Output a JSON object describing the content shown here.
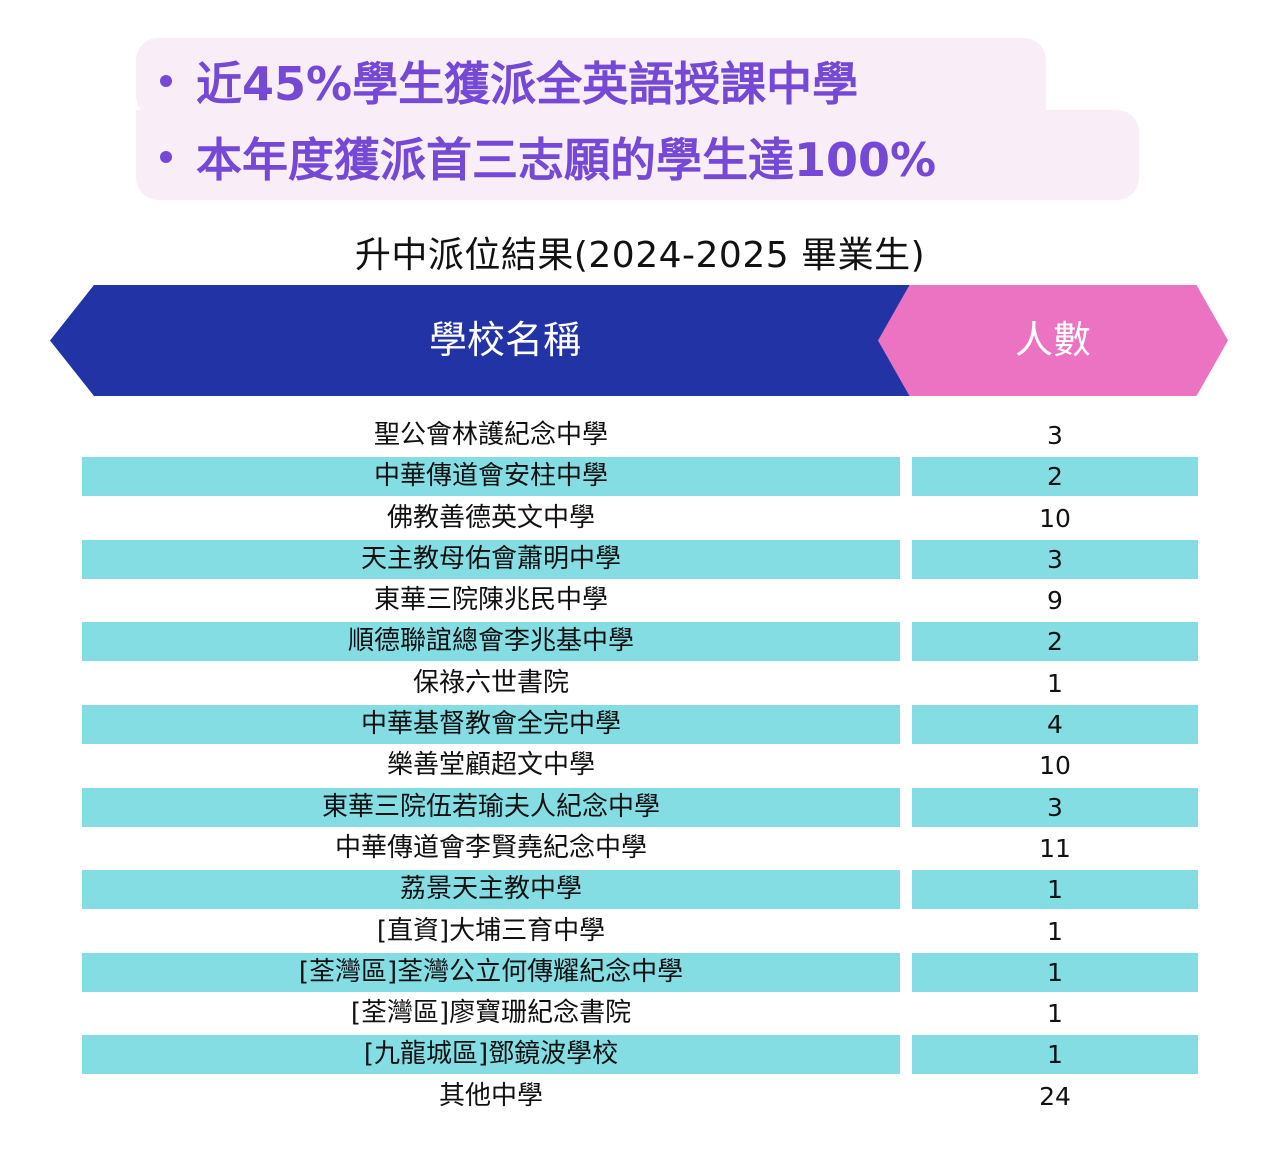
{
  "highlights": [
    "近45%學生獲派全英語授課中學",
    "本年度獲派首三志願的學生達100%"
  ],
  "title": "升中派位結果(2024-2025 畢業生)",
  "table": {
    "headers": {
      "school": "學校名稱",
      "count": "人數"
    },
    "rows": [
      {
        "school": "聖公會林護紀念中學",
        "count": "3"
      },
      {
        "school": "中華傳道會安柱中學",
        "count": "2"
      },
      {
        "school": "佛教善德英文中學",
        "count": "10"
      },
      {
        "school": "天主教母佑會蕭明中學",
        "count": "3"
      },
      {
        "school": "東華三院陳兆民中學",
        "count": "9"
      },
      {
        "school": "順德聯誼總會李兆基中學",
        "count": "2"
      },
      {
        "school": "保祿六世書院",
        "count": "1"
      },
      {
        "school": "中華基督教會全完中學",
        "count": "4"
      },
      {
        "school": "樂善堂顧超文中學",
        "count": "10"
      },
      {
        "school": "東華三院伍若瑜夫人紀念中學",
        "count": "3"
      },
      {
        "school": "中華傳道會李賢堯紀念中學",
        "count": "11"
      },
      {
        "school": "荔景天主教中學",
        "count": "1"
      },
      {
        "school": "[直資]大埔三育中學",
        "count": "1"
      },
      {
        "school": "[荃灣區]荃灣公立何傳耀紀念中學",
        "count": "1"
      },
      {
        "school": "[荃灣區]廖寶珊紀念書院",
        "count": "1"
      },
      {
        "school": "[九龍城區]鄧鏡波學校",
        "count": "1"
      },
      {
        "school": "其他中學",
        "count": "24"
      }
    ]
  },
  "colors": {
    "accent_purple": "#7548d6",
    "highlight_bg": "#f9eef8",
    "header_blue": "#2233a6",
    "header_pink": "#ec73c2",
    "row_stripe": "#83dde3"
  }
}
